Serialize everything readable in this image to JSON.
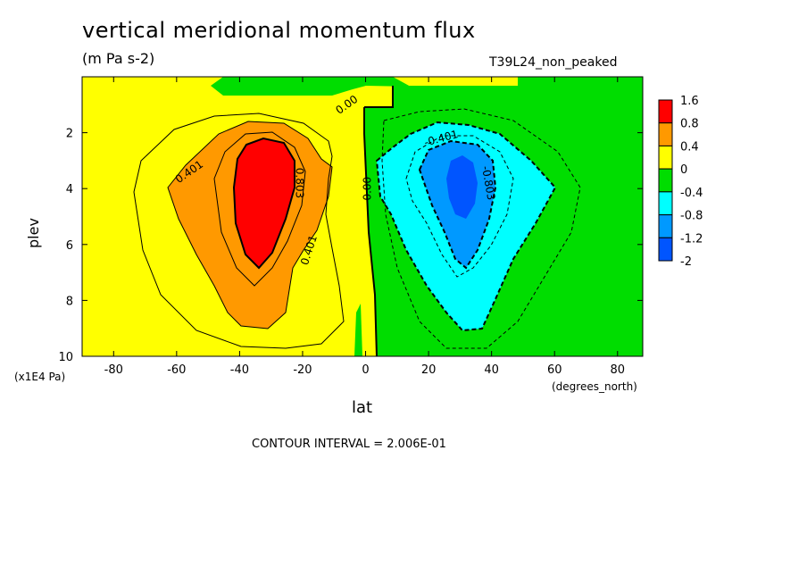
{
  "chart_data": {
    "type": "contour",
    "title": "vertical meridional momentum flux",
    "units": "(m Pa s-2)",
    "run_label": "T39L24_non_peaked",
    "xlabel": "lat",
    "xunits": "(degrees_north)",
    "ylabel": "plev",
    "yunits": "(x1E4 Pa)",
    "xlim": [
      -90,
      88
    ],
    "ylim": [
      10,
      0
    ],
    "xticks": [
      -80,
      -60,
      -40,
      -20,
      0,
      20,
      40,
      60,
      80
    ],
    "yticks": [
      2,
      4,
      6,
      8,
      10
    ],
    "contour_interval_text": "CONTOUR INTERVAL = 2.006E-01",
    "colorbar": {
      "labels": [
        "1.6",
        "0.8",
        "0.4",
        "0",
        "-0.4",
        "-0.8",
        "-1.2",
        "-2"
      ],
      "colors": [
        "#ff0000",
        "#ff9900",
        "#ffff00",
        "#00dd00",
        "#00ffff",
        "#0099ff",
        "#0055ff"
      ]
    },
    "contour_labels": [
      {
        "text": "0.401",
        "lon": -56,
        "plev": 3.4,
        "angle": -35
      },
      {
        "text": "0.803",
        "lon": -21,
        "plev": 3.8,
        "angle": 90
      },
      {
        "text": "0.401",
        "lon": -18,
        "plev": 6.2,
        "angle": -72
      },
      {
        "text": "0.00",
        "lon": -6,
        "plev": 1.0,
        "angle": -35
      },
      {
        "text": "0.00",
        "lon": 0.5,
        "plev": 4.0,
        "angle": -90
      },
      {
        "text": "-0.401",
        "lon": 24,
        "plev": 2.2,
        "angle": -15
      },
      {
        "text": "-0.803",
        "lon": 39,
        "plev": 3.8,
        "angle": 80
      }
    ],
    "extrema": {
      "positive_max_center": {
        "lon": -31,
        "plev": 4.5
      },
      "negative_min_center": {
        "lon": 31,
        "plev": 4.0
      }
    }
  }
}
